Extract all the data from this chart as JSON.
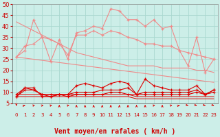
{
  "xlabel": "Vent moyen/en rafales ( km/h )",
  "bg_color": "#cceee8",
  "grid_color": "#aad8d0",
  "xlim": [
    -0.5,
    23.5
  ],
  "ylim": [
    5,
    50
  ],
  "yticks": [
    5,
    10,
    15,
    20,
    25,
    30,
    35,
    40,
    45,
    50
  ],
  "xticks": [
    0,
    1,
    2,
    3,
    4,
    5,
    6,
    7,
    8,
    9,
    10,
    11,
    12,
    13,
    14,
    15,
    16,
    17,
    18,
    19,
    20,
    21,
    22,
    23
  ],
  "line_salmon_1": [
    26,
    29,
    43,
    35,
    24,
    34,
    25,
    37,
    38,
    40,
    39,
    48,
    47,
    43,
    43,
    40,
    43,
    39,
    40,
    29,
    22,
    35,
    19,
    25
  ],
  "line_salmon_2": [
    26,
    31,
    32,
    35,
    34,
    32,
    27,
    36,
    36,
    38,
    36,
    38,
    37,
    35,
    34,
    32,
    32,
    31,
    31,
    29,
    28,
    27,
    26,
    25
  ],
  "line_salmon_trend1": [
    42,
    40,
    38,
    36,
    34,
    32,
    30,
    28,
    27,
    26,
    25,
    24,
    23,
    22,
    22,
    22,
    22,
    21,
    21,
    21,
    21,
    20,
    20,
    19
  ],
  "line_salmon_trend2": [
    26,
    25.5,
    25,
    24.5,
    24,
    23.5,
    23,
    22.5,
    22,
    21.5,
    21,
    20.5,
    20,
    19.5,
    19,
    18.5,
    18,
    17.5,
    17,
    16.5,
    16,
    15.5,
    15,
    14.5
  ],
  "line_dark_1": [
    8,
    12,
    12,
    8,
    8,
    9,
    9,
    13,
    14,
    13,
    12,
    14,
    15,
    14,
    9,
    16,
    13,
    12,
    11,
    11,
    11,
    13,
    9,
    11
  ],
  "line_dark_2": [
    8,
    11,
    11,
    9,
    8,
    9,
    9,
    10,
    10,
    10,
    11,
    11,
    11,
    12,
    9,
    10,
    10,
    10,
    10,
    10,
    10,
    11,
    9,
    11
  ],
  "line_dark_3": [
    9,
    12,
    11,
    9,
    9,
    9,
    8,
    9,
    9,
    9,
    9,
    10,
    10,
    9,
    9,
    9,
    9,
    9,
    9,
    9,
    9,
    10,
    9,
    10
  ],
  "line_dark_flat1": [
    9,
    9,
    9,
    9,
    9,
    9,
    9,
    9,
    9,
    9,
    9,
    9,
    9,
    9,
    8,
    8,
    8,
    8,
    8,
    8,
    8,
    8,
    8,
    8
  ],
  "line_dark_flat2": [
    8,
    8,
    8,
    8,
    8,
    8,
    8,
    8,
    8,
    8,
    8,
    8,
    8,
    8,
    7,
    7,
    7,
    7,
    7,
    7,
    7,
    7,
    7,
    7
  ],
  "salmon_color": "#f08888",
  "dark_red_color": "#dd0000",
  "xlabel_fontsize": 7,
  "tick_fontsize": 6,
  "arrow_directions": [
    270,
    45,
    60,
    60,
    60,
    90,
    60,
    90,
    90,
    90,
    90,
    90,
    90,
    90,
    90,
    90,
    60,
    90,
    60,
    45,
    315,
    315,
    315,
    315
  ]
}
